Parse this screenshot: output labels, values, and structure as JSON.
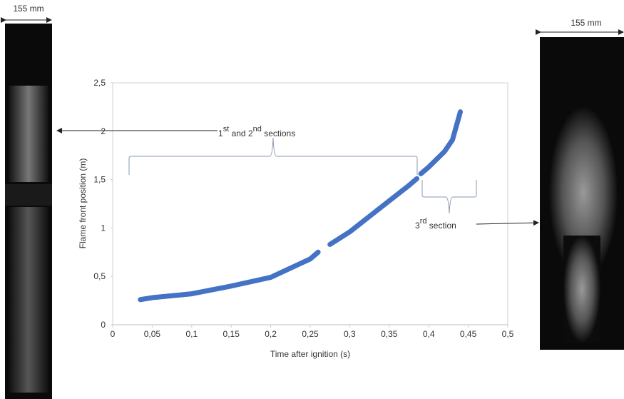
{
  "chart_data": {
    "type": "line",
    "xlabel": "Time after ignition (s)",
    "ylabel": "Flame front position (m)",
    "x": [
      0.035,
      0.05,
      0.1,
      0.15,
      0.2,
      0.25,
      0.26,
      null,
      0.275,
      0.3,
      0.325,
      0.35,
      0.375,
      0.385,
      null,
      0.39,
      0.4,
      0.42,
      0.43,
      0.44
    ],
    "series": [
      {
        "name": null,
        "color": "#4472c4",
        "values": [
          0.26,
          0.28,
          0.32,
          0.4,
          0.49,
          0.68,
          0.75,
          null,
          0.83,
          0.96,
          1.12,
          1.28,
          1.44,
          1.51,
          null,
          1.56,
          1.63,
          1.79,
          1.91,
          2.2
        ]
      }
    ],
    "xlim": [
      0,
      0.5
    ],
    "xticks": [
      0,
      {
        "value": 0.05,
        "label": "0,05"
      },
      {
        "value": 0.1,
        "label": "0,1"
      },
      {
        "value": 0.15,
        "label": "0,15"
      },
      {
        "value": 0.2,
        "label": "0,2"
      },
      {
        "value": 0.25,
        "label": "0,25"
      },
      {
        "value": 0.3,
        "label": "0,3"
      },
      {
        "value": 0.35,
        "label": "0,35"
      },
      {
        "value": 0.4,
        "label": "0,4"
      },
      {
        "value": 0.45,
        "label": "0,45"
      },
      {
        "value": 0.5,
        "label": "0,5"
      }
    ],
    "ylim": [
      0,
      2.5
    ],
    "yticks": [
      0,
      {
        "value": 0.5,
        "label": "0,5"
      },
      1,
      {
        "value": 1.5,
        "label": "1,5"
      },
      2,
      {
        "value": 2.5,
        "label": "2,5"
      }
    ],
    "grid": false,
    "annotation_1": [
      "1",
      "st",
      " and 2",
      "nd",
      " sections"
    ],
    "annotation_2": [
      "3",
      "rd",
      " section"
    ],
    "scale_left": "155 mm",
    "scale_right": "155 mm"
  }
}
